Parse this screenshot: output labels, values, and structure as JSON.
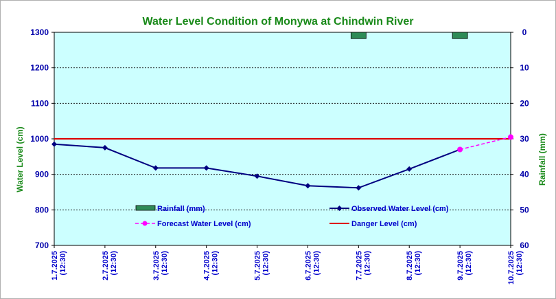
{
  "chart_data": {
    "type": "line",
    "title": "Water Level Condition of Monywa at Chindwin River",
    "ylabel": "Water Level (cm)",
    "y2label": "Rainfall (mm)",
    "ylim": [
      700,
      1300
    ],
    "y2lim": [
      60,
      0
    ],
    "yticks": [
      "1300",
      "1200",
      "1100",
      "1000",
      "900",
      "800",
      "700"
    ],
    "y2ticks": [
      "0",
      "10",
      "20",
      "30",
      "40",
      "50",
      "60"
    ],
    "categories": [
      [
        "1.7.2025",
        "(12:30)"
      ],
      [
        "2.7.2025",
        "(12:30)"
      ],
      [
        "3.7.2025",
        "(12:30)"
      ],
      [
        "4.7.2025",
        "(12:30)"
      ],
      [
        "5.7.2025",
        "(12:30)"
      ],
      [
        "6.7.2025",
        "(12:30)"
      ],
      [
        "7.7.2025",
        "(12:30)"
      ],
      [
        "8.7.2025",
        "(12:30)"
      ],
      [
        "9.7.2025",
        "(12:30)"
      ],
      [
        "10.7.2025",
        "(12:30)"
      ]
    ],
    "series": [
      {
        "name": "Observed Water Level (cm)",
        "color": "#000080",
        "values": [
          985,
          975,
          918,
          918,
          895,
          868,
          862,
          915,
          970,
          null
        ]
      },
      {
        "name": "Forecast Water Level (cm)",
        "color": "#ff00ff",
        "values": [
          null,
          null,
          null,
          null,
          null,
          null,
          null,
          null,
          970,
          1005
        ]
      },
      {
        "name": "Danger Level (cm)",
        "color": "#dd0000",
        "values": [
          1000,
          1000,
          1000,
          1000,
          1000,
          1000,
          1000,
          1000,
          1000,
          1000
        ]
      },
      {
        "name": "Rainfall (mm)",
        "color": "#2e8b57",
        "axis": "right",
        "values": [
          0,
          0,
          0,
          0,
          0,
          0,
          1,
          0,
          1,
          0
        ]
      }
    ],
    "plot_background": "#ccffff",
    "grid": true,
    "legend": "bottom-inside"
  }
}
